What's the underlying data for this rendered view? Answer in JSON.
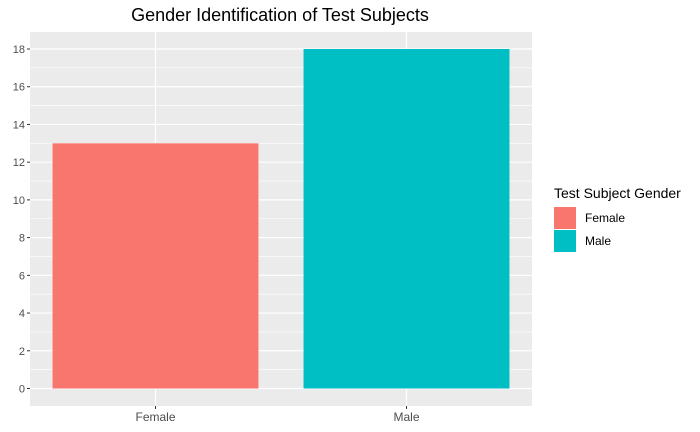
{
  "chart_data": {
    "type": "bar",
    "title": "Gender Identification of Test Subjects",
    "xlabel": "",
    "ylabel": "",
    "categories": [
      "Female",
      "Male"
    ],
    "values": [
      13,
      18
    ],
    "colors": [
      "#F8766D",
      "#00BFC4"
    ],
    "ylim": [
      0,
      18.9
    ],
    "yticks": [
      0,
      2,
      4,
      6,
      8,
      10,
      12,
      14,
      16,
      18
    ],
    "grid": true,
    "panel_background": "#EBEBEB",
    "legend": {
      "title": "Test Subject Gender",
      "position": "right",
      "entries": [
        {
          "label": "Female",
          "color": "#F8766D"
        },
        {
          "label": "Male",
          "color": "#00BFC4"
        }
      ]
    }
  }
}
